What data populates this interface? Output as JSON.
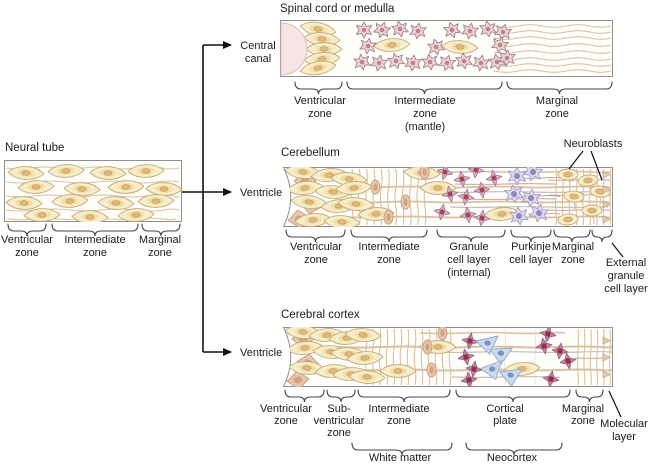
{
  "titles": {
    "neural_tube": "Neural tube",
    "spinal": "Spinal cord or medulla",
    "cerebellum": "Cerebellum",
    "cortex": "Cerebral cortex"
  },
  "branch": {
    "central_canal": [
      "Central",
      "canal"
    ],
    "ventricle_mid": "Ventricle",
    "ventricle_bottom": "Ventricle"
  },
  "neural_tube": {
    "ventricular": [
      "Ventricular",
      "zone"
    ],
    "intermediate": [
      "Intermediate",
      "zone"
    ],
    "marginal": [
      "Marginal",
      "zone"
    ]
  },
  "spinal": {
    "ventricular": [
      "Ventricular",
      "zone"
    ],
    "intermediate": [
      "Intermediate",
      "zone",
      "(mantle)"
    ],
    "marginal": [
      "Marginal",
      "zone"
    ]
  },
  "cerebellum": {
    "ventricular": [
      "Ventricular",
      "zone"
    ],
    "intermediate": [
      "Intermediate",
      "zone"
    ],
    "granule": [
      "Granule",
      "cell layer",
      "(internal)"
    ],
    "purkinje": [
      "Purkinje",
      "cell layer"
    ],
    "marginal": [
      "Marginal",
      "zone"
    ],
    "external_granule": [
      "External",
      "granule",
      "cell layer"
    ],
    "neuroblasts": "Neuroblasts"
  },
  "cortex": {
    "ventricular": [
      "Ventricular",
      "zone"
    ],
    "subventricular": [
      "Sub-",
      "ventricular",
      "zone"
    ],
    "intermediate": [
      "Intermediate",
      "zone"
    ],
    "cortical_plate": [
      "Cortical",
      "plate"
    ],
    "marginal": [
      "Marginal",
      "zone"
    ],
    "molecular": [
      "Molecular",
      "layer"
    ],
    "white_matter": "White matter",
    "neocortex": "Neocortex"
  },
  "colors": {
    "text": "#1c1c1c",
    "arrow": "#111111",
    "outline": "#8f8f8f",
    "box_fill": "#fffefb",
    "canal_pink": "#f7e4e4",
    "canal_stroke": "#ddbcbc",
    "cell_yellow": "#f8edca",
    "cell_yellow_inner": "#f0dfa8",
    "cell_yellow_nucleus": "#dfb87a",
    "cell_yellow_stroke": "#c3ab77",
    "cell_tan": "#e6c6ad",
    "cell_tan_stroke": "#c79e80",
    "cell_pink": "#ecd4d6",
    "cell_pink_stroke": "#a2838b",
    "cell_pink_nucleus": "#c5808f",
    "cell_mauve": "#dcb2c4",
    "cell_mauve_stroke": "#a57c95",
    "cell_mauve_nucleus": "#a34457",
    "cell_maroon": "#c687a4",
    "cell_maroon_stroke": "#94607c",
    "cell_maroon_nucleus": "#8c3052",
    "cell_lavender": "#dcd9ec",
    "cell_lavender_stroke": "#a29cc7",
    "cell_lavender_nucleus": "#8f88bb",
    "cell_blue": "#ccdaf0",
    "cell_blue_stroke": "#94a8cc",
    "cell_blue_nucleus": "#7b93c4",
    "fiber_tan": "#d9c0a0",
    "fiber_gray": "#b4ada3",
    "fiber_red": "#c08080"
  }
}
